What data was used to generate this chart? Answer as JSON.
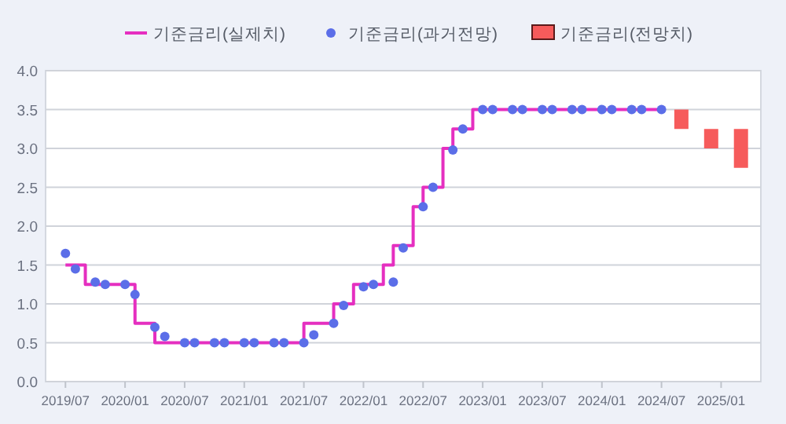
{
  "chart_data": {
    "type": "step",
    "categories": [
      null,
      null,
      "2019/07",
      null,
      null,
      null,
      null,
      null,
      "2020/01",
      null,
      null,
      null,
      null,
      null,
      "2020/07",
      null,
      null,
      null,
      null,
      null,
      "2021/01",
      null,
      null,
      null,
      null,
      null,
      "2021/07",
      null,
      null,
      null,
      null,
      null,
      "2022/01",
      null,
      null,
      null,
      null,
      null,
      "2022/07",
      null,
      null,
      null,
      null,
      null,
      "2023/01",
      null,
      null,
      null,
      null,
      null,
      "2023/07",
      null,
      null,
      null,
      null,
      null,
      "2024/01",
      null,
      null,
      null,
      null,
      null,
      "2024/07",
      null,
      null,
      null,
      null,
      null,
      "2025/01",
      null,
      null,
      null,
      null
    ],
    "ylim": [
      0,
      4
    ],
    "yticks": [
      {
        "value": 0,
        "label": "0.0"
      },
      {
        "value": 0.5,
        "label": "0.5"
      },
      {
        "value": 1,
        "label": "1.0"
      },
      {
        "value": 1.5,
        "label": "1.5"
      },
      {
        "value": 2,
        "label": "2.0"
      },
      {
        "value": 2.5,
        "label": "2.5"
      },
      {
        "value": 3,
        "label": "3.0"
      },
      {
        "value": 3.5,
        "label": "3.5"
      },
      {
        "value": 4,
        "label": "4.0"
      }
    ],
    "grid": "y",
    "legend": "top",
    "series": [
      {
        "name": "기준금리(실제치)",
        "color": "#e52fc0",
        "values": [
          null,
          null,
          1.5,
          1.5,
          1.25,
          1.25,
          1.25,
          1.25,
          1.25,
          0.75,
          0.75,
          0.5,
          0.5,
          0.5,
          0.5,
          0.5,
          0.5,
          0.5,
          0.5,
          0.5,
          0.5,
          0.5,
          0.5,
          0.5,
          0.5,
          0.5,
          0.75,
          0.75,
          0.75,
          1.0,
          1.0,
          1.25,
          1.25,
          1.25,
          1.5,
          1.75,
          1.75,
          2.25,
          2.5,
          2.5,
          3.0,
          3.25,
          3.25,
          3.5,
          3.5,
          3.5,
          3.5,
          3.5,
          3.5,
          3.5,
          3.5,
          3.5,
          3.5,
          3.5,
          3.5,
          3.5,
          3.5,
          3.5,
          3.5,
          3.5,
          3.5,
          3.5,
          3.5,
          null,
          null,
          null,
          null,
          null,
          null,
          null,
          null,
          null,
          null
        ]
      },
      {
        "name": "기준금리(과거전망)",
        "type": "scatter",
        "marker": "circle",
        "color": "#5b6ee8",
        "values": [
          null,
          null,
          1.65,
          1.45,
          null,
          1.28,
          1.25,
          null,
          1.25,
          1.12,
          null,
          0.7,
          0.58,
          null,
          0.5,
          0.5,
          null,
          0.5,
          0.5,
          null,
          0.5,
          0.5,
          null,
          0.5,
          0.5,
          null,
          0.5,
          0.6,
          null,
          0.75,
          0.98,
          null,
          1.22,
          1.25,
          null,
          1.28,
          1.72,
          null,
          2.25,
          2.5,
          null,
          2.98,
          3.25,
          null,
          3.5,
          3.5,
          null,
          3.5,
          3.5,
          null,
          3.5,
          3.5,
          null,
          3.5,
          3.5,
          null,
          3.5,
          3.5,
          null,
          3.5,
          3.5,
          null,
          3.5,
          null,
          null,
          null,
          null,
          null,
          null,
          null,
          null,
          null,
          null
        ]
      },
      {
        "name": "기준금리(전망치)",
        "type": "bar",
        "color": "#f65b5b",
        "base": [
          null,
          null,
          null,
          null,
          null,
          null,
          null,
          null,
          null,
          null,
          null,
          null,
          null,
          null,
          null,
          null,
          null,
          null,
          null,
          null,
          null,
          null,
          null,
          null,
          null,
          null,
          null,
          null,
          null,
          null,
          null,
          null,
          null,
          null,
          null,
          null,
          null,
          null,
          null,
          null,
          null,
          null,
          null,
          null,
          null,
          null,
          null,
          null,
          null,
          null,
          null,
          null,
          null,
          null,
          null,
          null,
          null,
          null,
          null,
          null,
          null,
          null,
          null,
          null,
          3.25,
          null,
          null,
          3.0,
          null,
          null,
          2.75,
          null,
          null
        ],
        "values": [
          null,
          null,
          null,
          null,
          null,
          null,
          null,
          null,
          null,
          null,
          null,
          null,
          null,
          null,
          null,
          null,
          null,
          null,
          null,
          null,
          null,
          null,
          null,
          null,
          null,
          null,
          null,
          null,
          null,
          null,
          null,
          null,
          null,
          null,
          null,
          null,
          null,
          null,
          null,
          null,
          null,
          null,
          null,
          null,
          null,
          null,
          null,
          null,
          null,
          null,
          null,
          null,
          null,
          null,
          null,
          null,
          null,
          null,
          null,
          null,
          null,
          null,
          null,
          null,
          0.25,
          null,
          null,
          0.25,
          null,
          null,
          0.5,
          null,
          null
        ]
      }
    ]
  }
}
